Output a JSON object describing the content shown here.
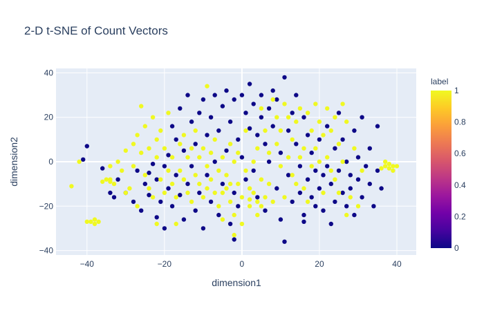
{
  "chart_data": {
    "type": "scatter",
    "title": "2-D t-SNE of Count Vectors",
    "xlabel": "dimension1",
    "ylabel": "dimension2",
    "xlim": [
      -48,
      45
    ],
    "ylim": [
      -42,
      42
    ],
    "x_ticks": [
      -40,
      -20,
      0,
      20,
      40
    ],
    "y_ticks": [
      -40,
      -20,
      0,
      20,
      40
    ],
    "x_tick_labels": [
      "−40",
      "−20",
      "0",
      "20",
      "40"
    ],
    "y_tick_labels": [
      "−40",
      "−20",
      "0",
      "20",
      "40"
    ],
    "grid": true,
    "plot_background": "#e5ecf6",
    "colorbar": {
      "title": "label",
      "ticks": [
        0,
        0.2,
        0.4,
        0.6,
        0.8,
        1
      ],
      "tick_labels": [
        "0",
        "0.2",
        "0.4",
        "0.6",
        "0.8",
        "1"
      ],
      "colorscale": [
        "#0d0887",
        "#46039f",
        "#7201a8",
        "#9c179e",
        "#bd3786",
        "#d8576b",
        "#ed7953",
        "#fb9f3a",
        "#fdca26",
        "#f0f921"
      ]
    },
    "series": [
      {
        "label_value": 0,
        "color": "#0d0887",
        "points": [
          [
            -36,
            -3
          ],
          [
            -34,
            -14
          ],
          [
            -33,
            -16
          ],
          [
            -32,
            -8
          ],
          [
            -30,
            -14
          ],
          [
            -28,
            -18
          ],
          [
            -27,
            -4
          ],
          [
            -26,
            -22
          ],
          [
            -25,
            -10
          ],
          [
            -24,
            -15
          ],
          [
            -24,
            -5
          ],
          [
            -22,
            -8
          ],
          [
            -22,
            -25
          ],
          [
            -21,
            -18
          ],
          [
            -20,
            -2
          ],
          [
            -20,
            -30
          ],
          [
            -19,
            -12
          ],
          [
            -19,
            3
          ],
          [
            -18,
            16
          ],
          [
            -18,
            -20
          ],
          [
            -17,
            -6
          ],
          [
            -17,
            10
          ],
          [
            -16,
            24
          ],
          [
            -16,
            -15
          ],
          [
            -15,
            5
          ],
          [
            -15,
            -26
          ],
          [
            -14,
            -10
          ],
          [
            -14,
            30
          ],
          [
            -13,
            18
          ],
          [
            -13,
            -2
          ],
          [
            -12,
            8
          ],
          [
            -12,
            -22
          ],
          [
            -11,
            22
          ],
          [
            -11,
            -14
          ],
          [
            -10,
            28
          ],
          [
            -10,
            -30
          ],
          [
            -9,
            12
          ],
          [
            -9,
            -6
          ],
          [
            -8,
            20
          ],
          [
            -8,
            -18
          ],
          [
            -7,
            30
          ],
          [
            -7,
            0
          ],
          [
            -6,
            14
          ],
          [
            -6,
            -24
          ],
          [
            -5,
            25
          ],
          [
            -5,
            -10
          ],
          [
            -4,
            32
          ],
          [
            -4,
            5
          ],
          [
            -3,
            18
          ],
          [
            -3,
            -28
          ],
          [
            -2,
            28
          ],
          [
            -2,
            -14
          ],
          [
            -1,
            10
          ],
          [
            -1,
            -20
          ],
          [
            0,
            30
          ],
          [
            0,
            2
          ],
          [
            1,
            22
          ],
          [
            1,
            -8
          ],
          [
            2,
            35
          ],
          [
            2,
            15
          ],
          [
            3,
            26
          ],
          [
            3,
            -4
          ],
          [
            4,
            12
          ],
          [
            4,
            -16
          ],
          [
            5,
            30
          ],
          [
            5,
            20
          ],
          [
            6,
            8
          ],
          [
            6,
            -22
          ],
          [
            7,
            24
          ],
          [
            7,
            0
          ],
          [
            8,
            32
          ],
          [
            8,
            16
          ],
          [
            9,
            -12
          ],
          [
            9,
            28
          ],
          [
            10,
            4
          ],
          [
            10,
            -26
          ],
          [
            11,
            38
          ],
          [
            11,
            -36
          ],
          [
            12,
            14
          ],
          [
            12,
            -6
          ],
          [
            13,
            22
          ],
          [
            13,
            -18
          ],
          [
            14,
            30
          ],
          [
            14,
            8
          ],
          [
            15,
            -2
          ],
          [
            15,
            -14
          ],
          [
            16,
            20
          ],
          [
            16,
            -24
          ],
          [
            17,
            12
          ],
          [
            17,
            -8
          ],
          [
            18,
            4
          ],
          [
            18,
            -16
          ],
          [
            19,
            -20
          ],
          [
            19,
            -4
          ],
          [
            20,
            10
          ],
          [
            20,
            -12
          ],
          [
            21,
            -6
          ],
          [
            21,
            -22
          ],
          [
            22,
            16
          ],
          [
            22,
            -2
          ],
          [
            23,
            -10
          ],
          [
            23,
            -28
          ],
          [
            24,
            6
          ],
          [
            24,
            -18
          ],
          [
            25,
            22
          ],
          [
            25,
            -4
          ],
          [
            26,
            10
          ],
          [
            26,
            -14
          ],
          [
            27,
            -20
          ],
          [
            27,
            0
          ],
          [
            28,
            -6
          ],
          [
            28,
            -12
          ],
          [
            29,
            14
          ],
          [
            29,
            -24
          ],
          [
            30,
            -8
          ],
          [
            30,
            2
          ],
          [
            31,
            20
          ],
          [
            31,
            -16
          ],
          [
            32,
            -2
          ],
          [
            33,
            6
          ],
          [
            33,
            -10
          ],
          [
            34,
            -20
          ],
          [
            35,
            16
          ],
          [
            35,
            -4
          ],
          [
            36,
            -12
          ],
          [
            -40,
            7
          ],
          [
            -41,
            1
          ],
          [
            -23,
            -1
          ],
          [
            -2,
            -35
          ],
          [
            16,
            -27
          ]
        ]
      },
      {
        "label_value": 1,
        "color": "#f0f921",
        "points": [
          [
            -44,
            -11
          ],
          [
            -42,
            0
          ],
          [
            -40,
            -27
          ],
          [
            -39,
            -27
          ],
          [
            -38,
            -26
          ],
          [
            -38,
            -28
          ],
          [
            -37,
            -27
          ],
          [
            -36,
            -9
          ],
          [
            -35,
            -8
          ],
          [
            -34,
            -8
          ],
          [
            -34,
            -9
          ],
          [
            -33,
            -10
          ],
          [
            -32,
            0
          ],
          [
            -31,
            -4
          ],
          [
            -30,
            5
          ],
          [
            -29,
            -12
          ],
          [
            -28,
            8
          ],
          [
            -28,
            -2
          ],
          [
            -27,
            12
          ],
          [
            -27,
            -20
          ],
          [
            -26,
            4
          ],
          [
            -26,
            25
          ],
          [
            -25,
            -6
          ],
          [
            -25,
            16
          ],
          [
            -24,
            -12
          ],
          [
            -24,
            6
          ],
          [
            -23,
            20
          ],
          [
            -23,
            -16
          ],
          [
            -22,
            2
          ],
          [
            -22,
            10
          ],
          [
            -21,
            -8
          ],
          [
            -21,
            14
          ],
          [
            -20,
            -14
          ],
          [
            -20,
            6
          ],
          [
            -19,
            -4
          ],
          [
            -19,
            22
          ],
          [
            -18,
            -10
          ],
          [
            -18,
            2
          ],
          [
            -17,
            -16
          ],
          [
            -17,
            -28
          ],
          [
            -16,
            8
          ],
          [
            -16,
            -4
          ],
          [
            -15,
            -8
          ],
          [
            -15,
            12
          ],
          [
            -14,
            -14
          ],
          [
            -14,
            2
          ],
          [
            -13,
            6
          ],
          [
            -13,
            -18
          ],
          [
            -12,
            -6
          ],
          [
            -12,
            14
          ],
          [
            -11,
            -10
          ],
          [
            -11,
            2
          ],
          [
            -10,
            -16
          ],
          [
            -10,
            6
          ],
          [
            -9,
            -2
          ],
          [
            -9,
            -12
          ],
          [
            -8,
            -8
          ],
          [
            -8,
            4
          ],
          [
            -7,
            -14
          ],
          [
            -7,
            10
          ],
          [
            -6,
            -4
          ],
          [
            -6,
            -20
          ],
          [
            -5,
            2
          ],
          [
            -5,
            -26
          ],
          [
            -4,
            -12
          ],
          [
            -4,
            -6
          ],
          [
            -3,
            -18
          ],
          [
            -3,
            8
          ],
          [
            -2,
            -24
          ],
          [
            -2,
            0
          ],
          [
            -1,
            -10
          ],
          [
            -1,
            4
          ],
          [
            0,
            -28
          ],
          [
            0,
            -16
          ],
          [
            1,
            -4
          ],
          [
            1,
            14
          ],
          [
            2,
            -12
          ],
          [
            2,
            -20
          ],
          [
            3,
            0
          ],
          [
            3,
            -14
          ],
          [
            4,
            6
          ],
          [
            4,
            -24
          ],
          [
            5,
            -8
          ],
          [
            5,
            24
          ],
          [
            6,
            -16
          ],
          [
            6,
            14
          ],
          [
            7,
            -10
          ],
          [
            7,
            4
          ],
          [
            8,
            28
          ],
          [
            8,
            -18
          ],
          [
            9,
            20
          ],
          [
            9,
            8
          ],
          [
            10,
            -2
          ],
          [
            10,
            14
          ],
          [
            11,
            26
          ],
          [
            11,
            -16
          ],
          [
            12,
            2
          ],
          [
            12,
            20
          ],
          [
            13,
            -6
          ],
          [
            13,
            10
          ],
          [
            14,
            18
          ],
          [
            14,
            -10
          ],
          [
            15,
            24
          ],
          [
            15,
            2
          ],
          [
            16,
            6
          ],
          [
            16,
            -12
          ],
          [
            17,
            22
          ],
          [
            17,
            -18
          ],
          [
            18,
            14
          ],
          [
            18,
            -2
          ],
          [
            19,
            26
          ],
          [
            19,
            6
          ],
          [
            20,
            18
          ],
          [
            20,
            0
          ],
          [
            21,
            12
          ],
          [
            21,
            -14
          ],
          [
            22,
            24
          ],
          [
            22,
            2
          ],
          [
            23,
            14
          ],
          [
            23,
            -4
          ],
          [
            24,
            -8
          ],
          [
            24,
            20
          ],
          [
            25,
            8
          ],
          [
            25,
            -14
          ],
          [
            26,
            26
          ],
          [
            26,
            0
          ],
          [
            27,
            18
          ],
          [
            27,
            -24
          ],
          [
            28,
            -16
          ],
          [
            29,
            6
          ],
          [
            30,
            -20
          ],
          [
            31,
            -4
          ],
          [
            37,
            -2
          ],
          [
            38,
            -3
          ],
          [
            38,
            -1
          ],
          [
            39,
            -2
          ],
          [
            39,
            -4
          ],
          [
            40,
            -2
          ],
          [
            37,
            0
          ],
          [
            36,
            -3
          ],
          [
            -34,
            -2
          ],
          [
            -30,
            -14
          ],
          [
            -22,
            -28
          ],
          [
            -9,
            34
          ],
          [
            -2,
            -33
          ],
          [
            2,
            -17
          ],
          [
            4,
            -18
          ],
          [
            5,
            -20
          ],
          [
            -5,
            -14
          ],
          [
            -3,
            -10
          ]
        ]
      }
    ]
  }
}
